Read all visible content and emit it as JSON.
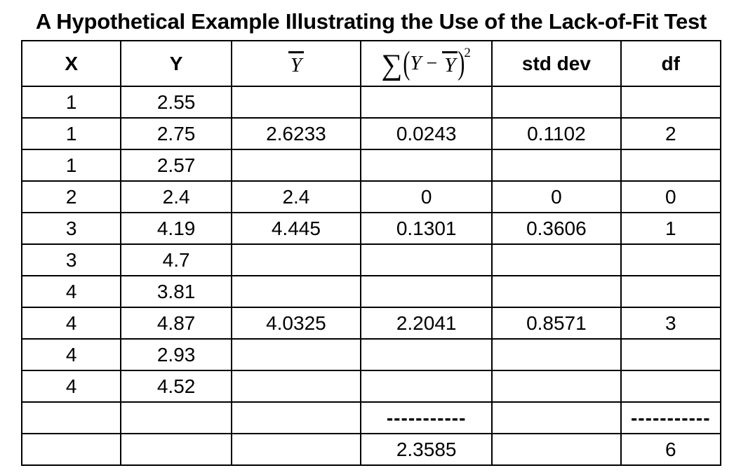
{
  "title": "A Hypothetical Example Illustrating the Use of the Lack-of-Fit Test",
  "table": {
    "headers": {
      "x": "X",
      "y": "Y",
      "ybar": "Y",
      "stddev": "std dev",
      "df": "df",
      "formula": {
        "sum": "∑",
        "lparen": "(",
        "y": "Y",
        "minus": "−",
        "ybar": "Y",
        "rparen": ")",
        "exponent": "2"
      }
    }
  },
  "chart_data": {
    "type": "table",
    "title": "A Hypothetical Example Illustrating the Use of the Lack-of-Fit Test",
    "columns": [
      "X",
      "Y",
      "Ȳ",
      "Σ(Y−Ȳ)²",
      "std dev",
      "df"
    ],
    "rows": [
      {
        "x": "1",
        "y": "2.55",
        "ybar": "",
        "ss": "",
        "stddev": "",
        "df": ""
      },
      {
        "x": "1",
        "y": "2.75",
        "ybar": "2.6233",
        "ss": "0.0243",
        "stddev": "0.1102",
        "df": "2"
      },
      {
        "x": "1",
        "y": "2.57",
        "ybar": "",
        "ss": "",
        "stddev": "",
        "df": ""
      },
      {
        "x": "2",
        "y": "2.4",
        "ybar": "2.4",
        "ss": "0",
        "stddev": "0",
        "df": "0"
      },
      {
        "x": "3",
        "y": "4.19",
        "ybar": "4.445",
        "ss": "0.1301",
        "stddev": "0.3606",
        "df": "1"
      },
      {
        "x": "3",
        "y": "4.7",
        "ybar": "",
        "ss": "",
        "stddev": "",
        "df": ""
      },
      {
        "x": "4",
        "y": "3.81",
        "ybar": "",
        "ss": "",
        "stddev": "",
        "df": ""
      },
      {
        "x": "4",
        "y": "4.87",
        "ybar": "4.0325",
        "ss": "2.2041",
        "stddev": "0.8571",
        "df": "3"
      },
      {
        "x": "4",
        "y": "2.93",
        "ybar": "",
        "ss": "",
        "stddev": "",
        "df": ""
      },
      {
        "x": "4",
        "y": "4.52",
        "ybar": "",
        "ss": "",
        "stddev": "",
        "df": ""
      },
      {
        "x": "",
        "y": "",
        "ybar": "",
        "ss": "-----------",
        "stddev": "",
        "df": "-----------"
      },
      {
        "x": "",
        "y": "",
        "ybar": "",
        "ss": "2.3585",
        "stddev": "",
        "df": "6"
      }
    ],
    "totals": {
      "sum_of_squares": 2.3585,
      "df": 6
    }
  },
  "colors": {
    "text": "#000000",
    "border": "#000000",
    "background": "#ffffff"
  }
}
